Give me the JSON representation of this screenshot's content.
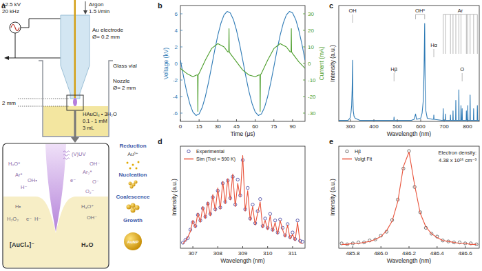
{
  "panel_labels": [
    "a",
    "b",
    "c",
    "d",
    "e"
  ],
  "diagram": {
    "setup": {
      "source": [
        "12.5 kV",
        "20 kHz"
      ],
      "gas": [
        "Argon",
        "1.5 l/min"
      ],
      "electrode": [
        "Au electrode",
        "Ø= 0.2 mm"
      ],
      "vial": "Glass vial",
      "nozzle": [
        "Nozzle",
        "Ø= 2 mm"
      ],
      "gap": "2 mm",
      "solution": [
        "HAuCl₄ • 3H₂O",
        "0.1 - 1 mM",
        "3 mL"
      ]
    },
    "zoom": {
      "plasma_species": [
        "(V)UV",
        "OH⁻",
        "H₂O*",
        "Ar₂*",
        "e⁻",
        "Ar*",
        "OH•",
        "O⁻",
        "H⁻",
        "O₂⁻"
      ],
      "liquid_species": [
        "H•",
        "H₃O⁺",
        "H₂O₂",
        "e⁻",
        "H⁻",
        "OH⁻"
      ],
      "precursor": "[AuCl₄]⁻",
      "solvent": "H₂O"
    },
    "process": {
      "steps": [
        "Reduction",
        "Nucleation",
        "Coalescence",
        "Growth"
      ],
      "ion": "Au³⁺",
      "product": "AuNP"
    }
  },
  "chart_data": [
    {
      "type": "line",
      "x_label": "Time (μs)",
      "y_label": "Voltage (kV)",
      "y2_label": "Current (mA)",
      "xlim": [
        0,
        100
      ],
      "xticks": [
        0,
        15,
        30,
        45,
        60,
        75,
        90
      ],
      "ylim": [
        -7,
        7
      ],
      "yticks": [
        -6,
        -4,
        -2,
        0,
        2,
        4,
        6
      ],
      "y2lim": [
        -35,
        35
      ],
      "y2ticks": [
        -30,
        -20,
        -10,
        0,
        10,
        20,
        30
      ],
      "series": [
        {
          "color": "#2f7bb6",
          "x": [
            0,
            2.5,
            5,
            7.5,
            10,
            12.5,
            15,
            17.5,
            20,
            22.5,
            25,
            27.5,
            30,
            32.5,
            35,
            37.5,
            40,
            42.5,
            45,
            47.5,
            50,
            52.5,
            55,
            57.5,
            60,
            62.5,
            65,
            67.5,
            70,
            72.5,
            75,
            77.5,
            80,
            82.5,
            85,
            87.5,
            90,
            92.5,
            95,
            97.5,
            100
          ],
          "values": [
            0.4,
            -1.57,
            -3.38,
            -4.85,
            -5.86,
            -6.29,
            -6.1,
            -5.32,
            -4.02,
            -2.32,
            -0.4,
            1.57,
            3.38,
            4.85,
            5.86,
            6.29,
            6.1,
            5.32,
            4.02,
            2.32,
            0.4,
            -1.57,
            -3.38,
            -4.85,
            -5.86,
            -6.29,
            -6.1,
            -5.32,
            -4.02,
            -2.32,
            -0.4,
            1.57,
            3.38,
            4.85,
            5.86,
            6.29,
            6.1,
            5.32,
            4.02,
            2.32,
            0.4
          ]
        },
        {
          "color": "#4d9e2c",
          "axis": "y2",
          "x": [
            0,
            5,
            10,
            13,
            13.8,
            14,
            14.2,
            15,
            20,
            25,
            30,
            35,
            38,
            38.8,
            39,
            39.2,
            40,
            45,
            50,
            55,
            60,
            63,
            63.8,
            64,
            64.2,
            65,
            70,
            75,
            80,
            85,
            88,
            88.8,
            89,
            89.2,
            90,
            95,
            100
          ],
          "values": [
            -3,
            -6,
            -8,
            -7,
            -7,
            -29,
            -7,
            -6,
            2,
            9,
            12,
            10,
            7,
            7,
            21,
            7,
            6,
            1,
            -4,
            -7,
            -8,
            -7,
            -7,
            -29,
            -7,
            -6,
            2,
            9,
            12,
            10,
            7,
            7,
            21,
            7,
            6,
            1,
            -3
          ]
        }
      ]
    },
    {
      "type": "line",
      "x_label": "Wavelength (nm)",
      "y_label": "Intensity (a.u.)",
      "tick_labels": "x",
      "xlim": [
        250,
        850
      ],
      "xticks": [
        300,
        400,
        500,
        600,
        700,
        800
      ],
      "ylim": [
        0,
        1.1
      ],
      "x": [
        250,
        290,
        298,
        302,
        305,
        307,
        308,
        309,
        310,
        312,
        315,
        320,
        340,
        480,
        485,
        486,
        487,
        560,
        572,
        578,
        582,
        600,
        606,
        611,
        614,
        617,
        619,
        622,
        628,
        650,
        655,
        656,
        657,
        690,
        695,
        696,
        697,
        705,
        706,
        707,
        726,
        727,
        728,
        737,
        738,
        739,
        749,
        750,
        751,
        762,
        763,
        764,
        771,
        772,
        773,
        776,
        777,
        778,
        794,
        795,
        796,
        800,
        801,
        802,
        810,
        811,
        812,
        825,
        826,
        827,
        841,
        842,
        843,
        850
      ],
      "series": [
        {
          "color": "#2f7bb6",
          "values": [
            0.01,
            0.01,
            0.03,
            0.08,
            0.15,
            0.3,
            0.42,
            0.58,
            0.25,
            0.1,
            0.05,
            0.03,
            0.01,
            0.01,
            0.01,
            0.04,
            0.01,
            0.01,
            0.02,
            0.07,
            0.02,
            0.03,
            0.08,
            0.2,
            0.45,
            0.93,
            0.3,
            0.1,
            0.03,
            0.02,
            0.02,
            0.06,
            0.02,
            0.01,
            0.01,
            0.12,
            0.01,
            0.01,
            0.07,
            0.01,
            0.01,
            0.06,
            0.01,
            0.01,
            0.1,
            0.01,
            0.01,
            0.2,
            0.01,
            0.01,
            0.3,
            0.01,
            0.01,
            0.15,
            0.01,
            0.01,
            0.12,
            0.01,
            0.01,
            0.1,
            0.01,
            0.01,
            0.15,
            0.01,
            0.01,
            0.25,
            0.01,
            0.01,
            0.12,
            0.01,
            0.01,
            0.15,
            0.01,
            0.01
          ]
        }
      ],
      "annotations": [
        {
          "label": "OH",
          "x": [
            309
          ]
        },
        {
          "label": "Hβ",
          "x": [
            486
          ]
        },
        {
          "label": "OH*",
          "x": [
            578,
            617
          ]
        },
        {
          "label": "Hα",
          "x": [
            656
          ]
        },
        {
          "label": "Ar",
          "x": [
            696,
            706,
            727,
            738,
            750,
            763,
            772,
            795,
            801,
            811,
            826,
            842
          ]
        },
        {
          "label": "O",
          "x": [
            777
          ]
        }
      ]
    },
    {
      "type": "line",
      "x_label": "Wavelength (nm)",
      "y_label": "Intensity (a.u.)",
      "tick_labels": "x",
      "legend": "top-left",
      "xlim": [
        306.5,
        311.5
      ],
      "xticks": [
        307,
        308,
        309,
        310,
        311
      ],
      "ylim": [
        0,
        1.1
      ],
      "x": [
        306.6,
        306.7,
        306.8,
        306.9,
        307.0,
        307.1,
        307.2,
        307.3,
        307.4,
        307.5,
        307.6,
        307.7,
        307.8,
        307.9,
        308.0,
        308.1,
        308.2,
        308.3,
        308.4,
        308.5,
        308.6,
        308.7,
        308.8,
        308.9,
        309.0,
        309.1,
        309.2,
        309.3,
        309.4,
        309.5,
        309.6,
        309.7,
        309.8,
        309.9,
        310.0,
        310.1,
        310.2,
        310.3,
        310.4,
        310.5,
        310.6,
        310.7,
        310.8,
        310.9,
        311.0,
        311.1,
        311.2,
        311.3,
        311.4
      ],
      "series": [
        {
          "name": "Experimental",
          "type": "scatter",
          "marker": "circle",
          "color": "#3b3b9c",
          "values": [
            0.06,
            0.09,
            0.11,
            0.2,
            0.28,
            0.24,
            0.36,
            0.3,
            0.43,
            0.34,
            0.48,
            0.37,
            0.55,
            0.42,
            0.62,
            0.44,
            0.7,
            0.5,
            0.73,
            0.54,
            0.77,
            0.47,
            0.74,
            0.57,
            0.95,
            0.42,
            0.65,
            0.32,
            0.47,
            0.27,
            0.4,
            0.53,
            0.24,
            0.32,
            0.22,
            0.37,
            0.2,
            0.3,
            0.17,
            0.31,
            0.22,
            0.14,
            0.26,
            0.12,
            0.17,
            0.1,
            0.3,
            0.08,
            0.07
          ]
        },
        {
          "name": "Sim (Trot = 590 K)",
          "type": "line",
          "color": "#e8523a",
          "values": [
            0.05,
            0.08,
            0.12,
            0.18,
            0.3,
            0.22,
            0.38,
            0.28,
            0.45,
            0.32,
            0.5,
            0.35,
            0.58,
            0.4,
            0.65,
            0.42,
            0.72,
            0.48,
            0.75,
            0.52,
            0.8,
            0.45,
            0.7,
            0.55,
            1.0,
            0.4,
            0.62,
            0.3,
            0.45,
            0.25,
            0.38,
            0.5,
            0.22,
            0.3,
            0.2,
            0.35,
            0.18,
            0.28,
            0.15,
            0.3,
            0.2,
            0.12,
            0.25,
            0.1,
            0.15,
            0.08,
            0.28,
            0.06,
            0.05
          ]
        }
      ]
    },
    {
      "type": "line",
      "x_label": "Wavelength (nm)",
      "y_label": "Intensity (a.u.)",
      "tick_labels": "x",
      "legend": "top-left",
      "xlim": [
        485.7,
        486.7
      ],
      "xticks": [
        485.8,
        {
          "value": 486,
          "label": "486.0"
        },
        486.2,
        486.4,
        486.6
      ],
      "ylim": [
        0,
        1.05
      ],
      "x": [
        485.72,
        485.76,
        485.8,
        485.84,
        485.88,
        485.92,
        485.96,
        486.0,
        486.04,
        486.08,
        486.12,
        486.16,
        486.2,
        486.24,
        486.28,
        486.32,
        486.36,
        486.4,
        486.44,
        486.48,
        486.52,
        486.56,
        486.6,
        486.64,
        486.68
      ],
      "series": [
        {
          "name": "Hβ",
          "type": "scatter",
          "marker": "circle",
          "color": "#555555",
          "values": [
            0.05,
            0.04,
            0.05,
            0.06,
            0.06,
            0.08,
            0.09,
            0.13,
            0.17,
            0.29,
            0.5,
            0.82,
            1.0,
            0.63,
            0.37,
            0.21,
            0.15,
            0.12,
            0.08,
            0.07,
            0.06,
            0.06,
            0.05,
            0.05,
            0.04
          ]
        },
        {
          "name": "Voigt Fit",
          "type": "line",
          "color": "#e8523a",
          "values": [
            0.04,
            0.04,
            0.05,
            0.05,
            0.06,
            0.07,
            0.09,
            0.12,
            0.18,
            0.28,
            0.48,
            0.84,
            0.99,
            0.65,
            0.36,
            0.22,
            0.15,
            0.11,
            0.08,
            0.07,
            0.06,
            0.05,
            0.05,
            0.04,
            0.04
          ]
        }
      ],
      "annotations": [
        "Electron density:",
        "4.38 x 10¹⁶ cm⁻³"
      ]
    }
  ]
}
